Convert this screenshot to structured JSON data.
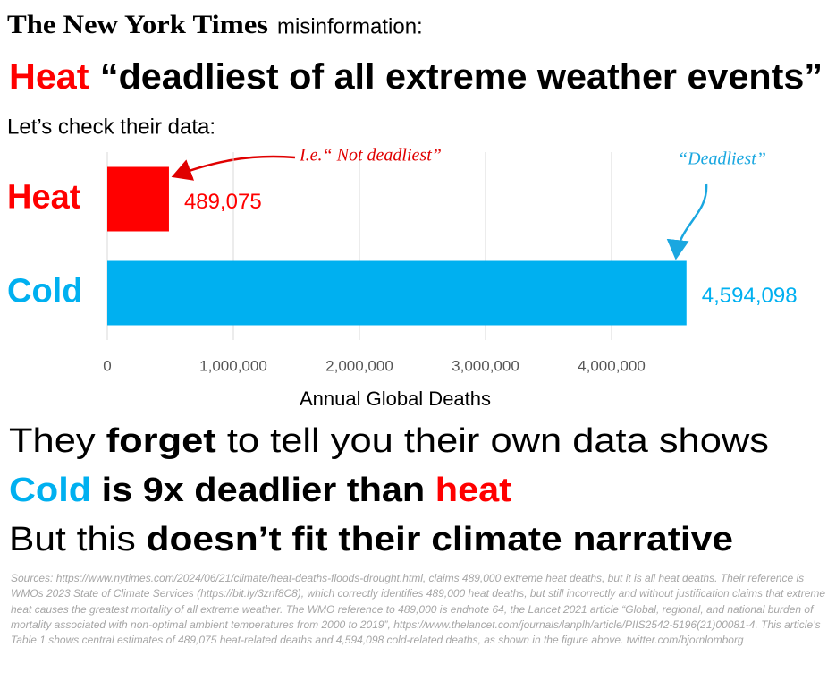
{
  "header": {
    "logo": "The New York Times",
    "label": "misinformation:"
  },
  "headline": {
    "highlight": "Heat",
    "quote": "“deadliest of all extreme weather events”",
    "highlight_color": "#ff0000"
  },
  "intro": "Let’s check their data:",
  "chart_data": {
    "type": "bar",
    "orientation": "horizontal",
    "categories": [
      "Heat",
      "Cold"
    ],
    "values": [
      489075,
      4594098
    ],
    "value_labels": [
      "489,075",
      "4,594,098"
    ],
    "colors": [
      "#ff0000",
      "#00b0f0"
    ],
    "xlim": [
      0,
      5000000
    ],
    "xticks": [
      0,
      {
        "value": 1000000,
        "label": "1,000,000"
      },
      {
        "value": 2000000,
        "label": "2,000,000"
      },
      {
        "value": 3000000,
        "label": "3,000,000"
      },
      {
        "value": 4000000,
        "label": "4,000,000"
      }
    ],
    "grid": true,
    "xlabel": "Annual Global Deaths",
    "annotations": [
      "I.e.“ Not deadliest”",
      "“Deadliest”"
    ]
  },
  "takeaways": [
    [
      {
        "text": "They "
      },
      {
        "text": "forget",
        "bold": true
      },
      {
        "text": " to tell you their own data shows"
      }
    ],
    [
      {
        "text": "Cold",
        "bold": true,
        "color": "#00b0f0"
      },
      {
        "text": " is 9x deadlier than ",
        "bold": true
      },
      {
        "text": "heat",
        "bold": true,
        "color": "#ff0000"
      }
    ],
    [
      {
        "text": "But this "
      },
      {
        "text": "doesn’t fit their climate narrative",
        "bold": true
      }
    ]
  ],
  "sources": "Sources: https://www.nytimes.com/2024/06/21/climate/heat-deaths-floods-drought.html, claims 489,000 extreme heat deaths, but it is all heat deaths. Their reference is WMOs 2023 State of Climate Services (https://bit.ly/3znf8C8), which correctly identifies 489,000 heat deaths, but still incorrectly and without justification claims that extreme heat causes the greatest mortality of all extreme weather. The WMO reference to 489,000 is endnote 64, the Lancet 2021 article “Global, regional, and national burden of mortality associated with non-optimal ambient temperatures from 2000 to 2019”, https://www.thelancet.com/journals/lanplh/article/PIIS2542-5196(21)00081-4. This article’s Table 1 shows central estimates of 489,075 heat-related deaths and 4,594,098 cold-related deaths, as shown in the figure above. twitter.com/bjornlomborg"
}
